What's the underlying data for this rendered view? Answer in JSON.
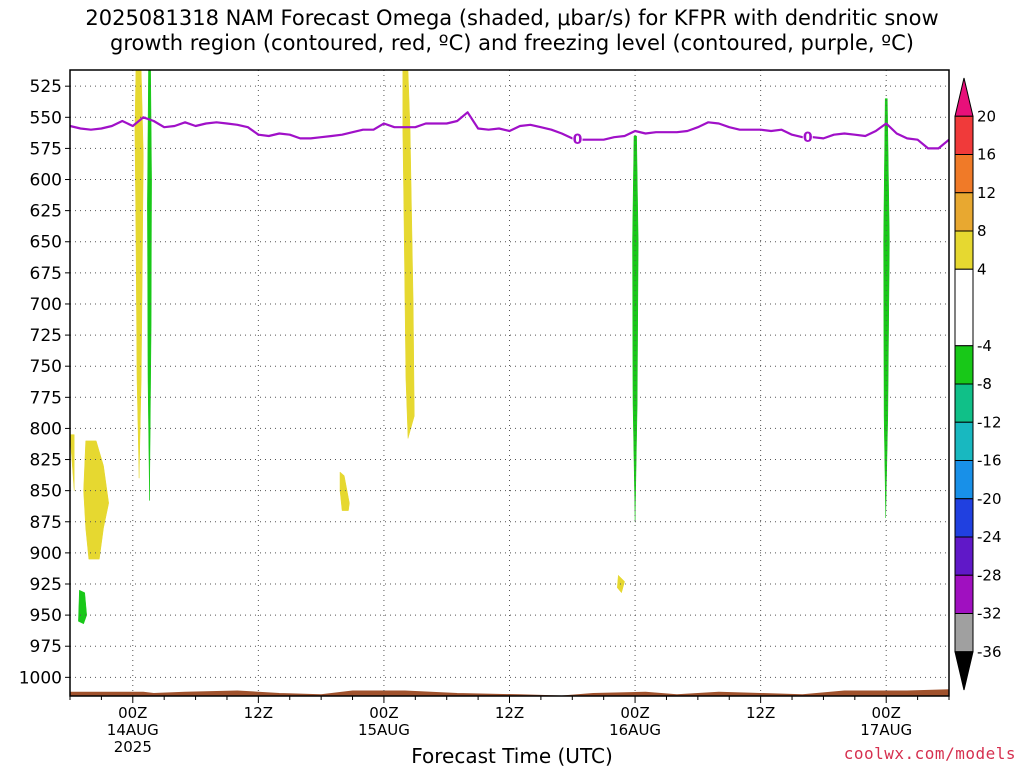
{
  "title": {
    "line1": "2025081318 NAM Forecast Omega (shaded, μbar/s) for KFPR with dendritic snow",
    "line2": "growth region (contoured, red, ºC) and freezing level (contoured, purple, ºC)"
  },
  "credit": "coolwx.com/models",
  "chart_data": {
    "type": "heatmap",
    "title": "2025081318 NAM Forecast Omega (shaded, μbar/s) for KFPR with dendritic snow growth region (contoured, red, ºC) and freezing level (contoured, purple, ºC)",
    "xlabel": "Forecast Time (UTC)",
    "ylabel": "",
    "x_range_hours": [
      -6,
      78
    ],
    "y_range_hpa": [
      1015,
      512
    ],
    "y_ticks": [
      525,
      550,
      575,
      600,
      625,
      650,
      675,
      700,
      725,
      750,
      775,
      800,
      825,
      850,
      875,
      900,
      925,
      950,
      975,
      1000
    ],
    "x_ticks": [
      {
        "hour": 0,
        "label": "00Z",
        "sub1": "14AUG",
        "sub2": "2025"
      },
      {
        "hour": 12,
        "label": "12Z",
        "sub1": "",
        "sub2": ""
      },
      {
        "hour": 24,
        "label": "00Z",
        "sub1": "15AUG",
        "sub2": ""
      },
      {
        "hour": 36,
        "label": "12Z",
        "sub1": "",
        "sub2": ""
      },
      {
        "hour": 48,
        "label": "00Z",
        "sub1": "16AUG",
        "sub2": ""
      },
      {
        "hour": 60,
        "label": "12Z",
        "sub1": "",
        "sub2": ""
      },
      {
        "hour": 72,
        "label": "00Z",
        "sub1": "17AUG",
        "sub2": ""
      }
    ],
    "grid": true,
    "colorbar": {
      "ticks": [
        20,
        16,
        12,
        8,
        4,
        -4,
        -8,
        -12,
        -16,
        -20,
        -24,
        -28,
        -32,
        -36
      ],
      "bins": [
        {
          "lo": 20,
          "hi": 24,
          "color": "#e8107a"
        },
        {
          "lo": 16,
          "hi": 20,
          "color": "#f03a3a"
        },
        {
          "lo": 12,
          "hi": 16,
          "color": "#f07a28"
        },
        {
          "lo": 8,
          "hi": 12,
          "color": "#e8a830"
        },
        {
          "lo": 4,
          "hi": 8,
          "color": "#e6d830"
        },
        {
          "lo": -4,
          "hi": 4,
          "color": "#ffffff"
        },
        {
          "lo": -8,
          "hi": -4,
          "color": "#18c818"
        },
        {
          "lo": -12,
          "hi": -8,
          "color": "#10c088"
        },
        {
          "lo": -16,
          "hi": -12,
          "color": "#18b8c0"
        },
        {
          "lo": -20,
          "hi": -16,
          "color": "#1890e8"
        },
        {
          "lo": -24,
          "hi": -20,
          "color": "#2040e0"
        },
        {
          "lo": -28,
          "hi": -24,
          "color": "#6018c8"
        },
        {
          "lo": -32,
          "hi": -28,
          "color": "#a010c0"
        },
        {
          "lo": -36,
          "hi": -32,
          "color": "#a0a0a0"
        },
        {
          "lo": -40,
          "hi": -36,
          "color": "#000000"
        }
      ]
    },
    "omega_regions": [
      {
        "name": "positive",
        "color": "#e6d830",
        "points": [
          [
            -4.5,
            810
          ],
          [
            -3.5,
            810
          ],
          [
            -2.8,
            830
          ],
          [
            -2.3,
            860
          ],
          [
            -2.8,
            880
          ],
          [
            -3.2,
            905
          ],
          [
            -4.2,
            905
          ],
          [
            -4.5,
            880
          ],
          [
            -4.7,
            850
          ]
        ]
      },
      {
        "name": "positive",
        "color": "#e6d830",
        "points": [
          [
            -6,
            805
          ],
          [
            -5.6,
            805
          ],
          [
            -5.6,
            850
          ]
        ]
      },
      {
        "name": "negative",
        "color": "#18c818",
        "points": [
          [
            -5.1,
            930
          ],
          [
            -4.6,
            932
          ],
          [
            -4.4,
            950
          ],
          [
            -4.7,
            957
          ],
          [
            -5.2,
            955
          ]
        ]
      },
      {
        "name": "positive",
        "color": "#e6d830",
        "points": [
          [
            0.3,
            512
          ],
          [
            0.8,
            512
          ],
          [
            1.0,
            580
          ],
          [
            0.9,
            680
          ],
          [
            0.8,
            760
          ],
          [
            0.6,
            840
          ],
          [
            0.4,
            760
          ],
          [
            0.3,
            640
          ],
          [
            0.2,
            560
          ]
        ]
      },
      {
        "name": "negative",
        "color": "#18c818",
        "points": [
          [
            1.5,
            512
          ],
          [
            1.7,
            512
          ],
          [
            1.8,
            600
          ],
          [
            1.75,
            720
          ],
          [
            1.6,
            858
          ],
          [
            1.45,
            760
          ],
          [
            1.4,
            620
          ]
        ]
      },
      {
        "name": "positive",
        "color": "#e6d830",
        "points": [
          [
            19.8,
            835
          ],
          [
            20.2,
            838
          ],
          [
            20.7,
            860
          ],
          [
            20.6,
            866
          ],
          [
            20.0,
            866
          ],
          [
            19.8,
            850
          ]
        ]
      },
      {
        "name": "positive",
        "color": "#e6d830",
        "points": [
          [
            25.8,
            512
          ],
          [
            26.3,
            512
          ],
          [
            26.5,
            560
          ],
          [
            26.8,
            700
          ],
          [
            26.9,
            790
          ],
          [
            26.3,
            808
          ],
          [
            26.1,
            760
          ],
          [
            25.9,
            620
          ],
          [
            25.8,
            560
          ]
        ]
      },
      {
        "name": "positive",
        "color": "#e6d830",
        "points": [
          [
            46.4,
            918
          ],
          [
            47.0,
            923
          ],
          [
            46.7,
            932
          ],
          [
            46.3,
            928
          ]
        ]
      },
      {
        "name": "negative",
        "color": "#18c818",
        "points": [
          [
            47.9,
            565
          ],
          [
            48.15,
            565
          ],
          [
            48.3,
            650
          ],
          [
            48.2,
            780
          ],
          [
            48.0,
            875
          ],
          [
            47.8,
            780
          ],
          [
            47.75,
            650
          ]
        ]
      },
      {
        "name": "negative",
        "color": "#18c818",
        "points": [
          [
            71.9,
            535
          ],
          [
            72.1,
            535
          ],
          [
            72.3,
            650
          ],
          [
            72.15,
            790
          ],
          [
            71.95,
            872
          ],
          [
            71.8,
            790
          ],
          [
            71.75,
            650
          ]
        ]
      }
    ],
    "freezing_level": {
      "color": "#a010c8",
      "label": "0",
      "label_positions_hour": [
        42.5,
        64.5
      ],
      "points": [
        [
          -6,
          557
        ],
        [
          -5,
          559
        ],
        [
          -4,
          560
        ],
        [
          -3,
          559
        ],
        [
          -2,
          557
        ],
        [
          -1,
          553
        ],
        [
          0,
          557
        ],
        [
          1,
          550
        ],
        [
          2,
          553
        ],
        [
          3,
          558
        ],
        [
          4,
          557
        ],
        [
          5,
          554
        ],
        [
          6,
          557
        ],
        [
          7,
          555
        ],
        [
          8,
          554
        ],
        [
          9,
          555
        ],
        [
          10,
          556
        ],
        [
          11,
          558
        ],
        [
          12,
          564
        ],
        [
          13,
          565
        ],
        [
          14,
          563
        ],
        [
          15,
          564
        ],
        [
          16,
          567
        ],
        [
          17,
          567
        ],
        [
          18,
          566
        ],
        [
          19,
          565
        ],
        [
          20,
          564
        ],
        [
          21,
          562
        ],
        [
          22,
          560
        ],
        [
          23,
          560
        ],
        [
          24,
          555
        ],
        [
          25,
          558
        ],
        [
          26,
          558
        ],
        [
          27,
          558
        ],
        [
          28,
          555
        ],
        [
          29,
          555
        ],
        [
          30,
          555
        ],
        [
          31,
          553
        ],
        [
          32,
          546
        ],
        [
          33,
          559
        ],
        [
          34,
          560
        ],
        [
          35,
          559
        ],
        [
          36,
          561
        ],
        [
          37,
          557
        ],
        [
          38,
          556
        ],
        [
          39,
          558
        ],
        [
          40,
          560
        ],
        [
          41,
          563
        ],
        [
          42,
          567
        ],
        [
          43,
          568
        ],
        [
          44,
          568
        ],
        [
          45,
          568
        ],
        [
          46,
          566
        ],
        [
          47,
          565
        ],
        [
          48,
          561
        ],
        [
          49,
          563
        ],
        [
          50,
          562
        ],
        [
          51,
          562
        ],
        [
          52,
          562
        ],
        [
          53,
          561
        ],
        [
          54,
          558
        ],
        [
          55,
          554
        ],
        [
          56,
          555
        ],
        [
          57,
          558
        ],
        [
          58,
          560
        ],
        [
          59,
          560
        ],
        [
          60,
          560
        ],
        [
          61,
          561
        ],
        [
          62,
          560
        ],
        [
          63,
          564
        ],
        [
          64,
          566
        ],
        [
          65,
          566
        ],
        [
          66,
          567
        ],
        [
          67,
          564
        ],
        [
          68,
          563
        ],
        [
          69,
          564
        ],
        [
          70,
          565
        ],
        [
          71,
          561
        ],
        [
          72,
          555
        ],
        [
          73,
          563
        ],
        [
          74,
          567
        ],
        [
          75,
          568
        ],
        [
          76,
          575
        ],
        [
          77,
          575
        ],
        [
          78,
          568
        ]
      ]
    },
    "terrain": {
      "color": "#a0522d",
      "top_hpa": [
        [
          -6,
          1012
        ],
        [
          1,
          1012
        ],
        [
          2,
          1013
        ],
        [
          5,
          1012
        ],
        [
          10,
          1011
        ],
        [
          14,
          1013
        ],
        [
          18,
          1014
        ],
        [
          21,
          1011
        ],
        [
          26,
          1011
        ],
        [
          31,
          1013
        ],
        [
          37,
          1014
        ],
        [
          41,
          1015
        ],
        [
          44,
          1013
        ],
        [
          49,
          1012
        ],
        [
          52,
          1014
        ],
        [
          56,
          1012
        ],
        [
          60,
          1013
        ],
        [
          64,
          1014
        ],
        [
          68,
          1011
        ],
        [
          74,
          1011
        ],
        [
          78,
          1010
        ]
      ]
    }
  }
}
